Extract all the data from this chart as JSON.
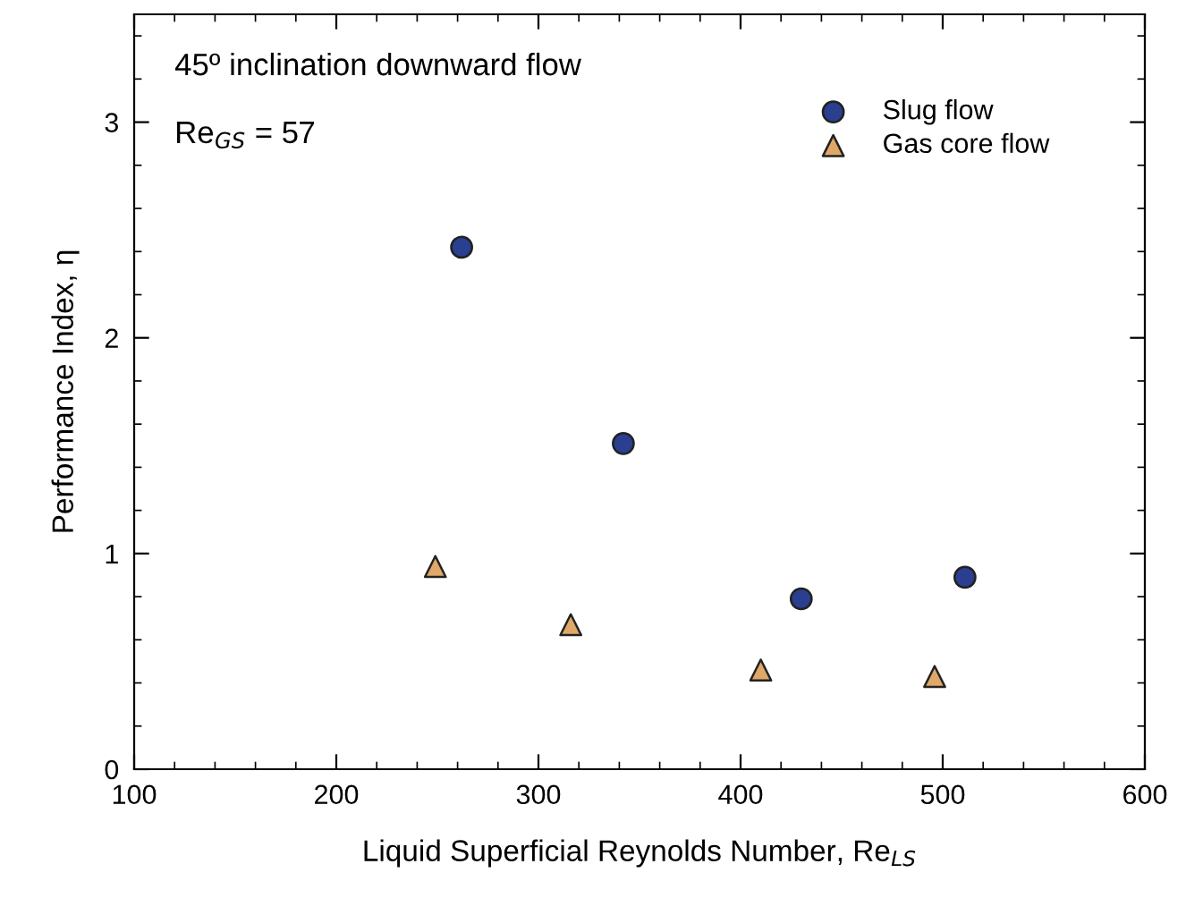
{
  "chart_data": {
    "type": "scatter",
    "xlabel": "Liquid Superficial Reynolds Number, Re$_{LS}$",
    "ylabel": "Performance Index, η",
    "annotations": [
      "45º inclination downward flow",
      "Re$_{GS}$ = 57"
    ],
    "series": [
      {
        "name": "Slug flow",
        "color": "#2a3f8f",
        "marker": "circle",
        "x": [
          262,
          342,
          430,
          511
        ],
        "values": [
          2.42,
          1.51,
          0.79,
          0.89
        ]
      },
      {
        "name": "Gas core flow",
        "color": "#e0a868",
        "marker": "triangle",
        "x": [
          249,
          316,
          410,
          496
        ],
        "values": [
          0.94,
          0.67,
          0.46,
          0.43
        ]
      }
    ],
    "xlim": [
      100,
      600
    ],
    "ylim": [
      0,
      3.5
    ],
    "xticks": [
      100,
      {
        "value": 120,
        "label": null
      },
      {
        "value": 140,
        "label": null
      },
      {
        "value": 160,
        "label": null
      },
      {
        "value": 180,
        "label": null
      },
      200,
      {
        "value": 220,
        "label": null
      },
      {
        "value": 240,
        "label": null
      },
      {
        "value": 260,
        "label": null
      },
      {
        "value": 280,
        "label": null
      },
      300,
      {
        "value": 320,
        "label": null
      },
      {
        "value": 340,
        "label": null
      },
      {
        "value": 360,
        "label": null
      },
      {
        "value": 380,
        "label": null
      },
      400,
      {
        "value": 420,
        "label": null
      },
      {
        "value": 440,
        "label": null
      },
      {
        "value": 460,
        "label": null
      },
      {
        "value": 480,
        "label": null
      },
      500,
      {
        "value": 520,
        "label": null
      },
      {
        "value": 540,
        "label": null
      },
      {
        "value": 560,
        "label": null
      },
      {
        "value": 580,
        "label": null
      },
      600
    ],
    "yticks": [
      0,
      {
        "value": 0.2,
        "label": null
      },
      {
        "value": 0.4,
        "label": null
      },
      {
        "value": 0.6,
        "label": null
      },
      {
        "value": 0.8,
        "label": null
      },
      1,
      {
        "value": 1.2,
        "label": null
      },
      {
        "value": 1.4,
        "label": null
      },
      {
        "value": 1.6,
        "label": null
      },
      {
        "value": 1.8,
        "label": null
      },
      2,
      {
        "value": 2.2,
        "label": null
      },
      {
        "value": 2.4,
        "label": null
      },
      {
        "value": 2.6,
        "label": null
      },
      {
        "value": 2.8,
        "label": null
      },
      3,
      {
        "value": 3.2,
        "label": null
      },
      {
        "value": 3.4,
        "label": null
      }
    ],
    "grid": false,
    "legend": "top right"
  }
}
